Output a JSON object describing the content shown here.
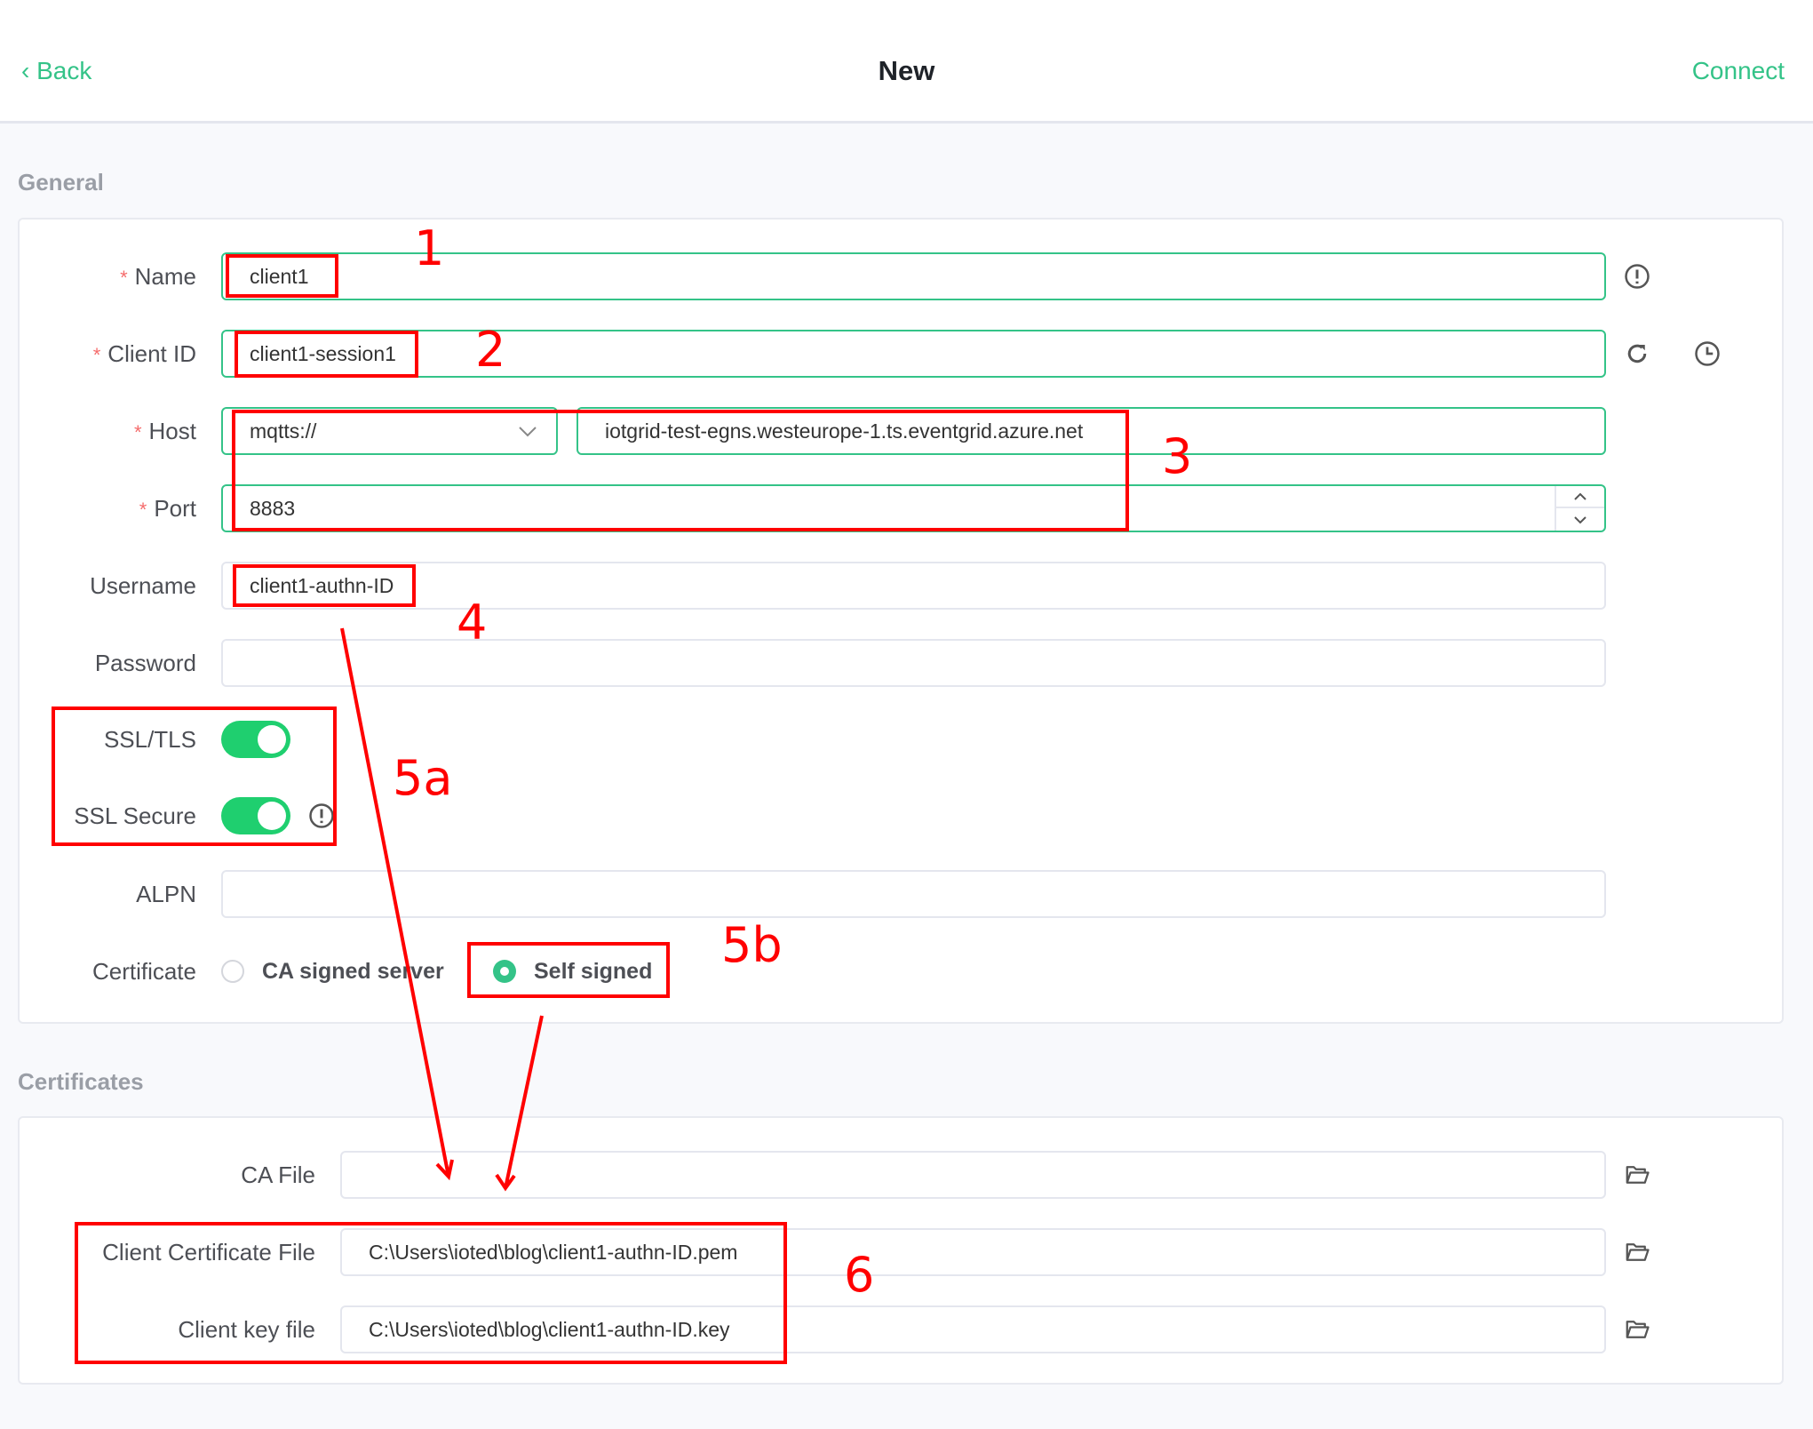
{
  "header": {
    "back_label": "Back",
    "title": "New",
    "connect_label": "Connect"
  },
  "general": {
    "section_title": "General",
    "name": {
      "label": "Name",
      "value": "client1"
    },
    "client_id": {
      "label": "Client ID",
      "value": "client1-session1"
    },
    "host": {
      "label": "Host",
      "protocol": "mqtts://",
      "value": "iotgrid-test-egns.westeurope-1.ts.eventgrid.azure.net"
    },
    "port": {
      "label": "Port",
      "value": "8883"
    },
    "username": {
      "label": "Username",
      "value": "client1-authn-ID"
    },
    "password": {
      "label": "Password",
      "value": ""
    },
    "ssl_tls": {
      "label": "SSL/TLS",
      "on": true
    },
    "ssl_secure": {
      "label": "SSL Secure",
      "on": true
    },
    "alpn": {
      "label": "ALPN",
      "value": ""
    },
    "certificate": {
      "label": "Certificate",
      "options": [
        "CA signed server",
        "Self signed"
      ],
      "selected": "Self signed"
    }
  },
  "certificates": {
    "section_title": "Certificates",
    "ca_file": {
      "label": "CA File",
      "value": ""
    },
    "client_cert": {
      "label": "Client Certificate File",
      "value": "C:\\Users\\ioted\\blog\\client1-authn-ID.pem"
    },
    "client_key": {
      "label": "Client key file",
      "value": "C:\\Users\\ioted\\blog\\client1-authn-ID.key"
    }
  },
  "annotations": {
    "color": "#ff0000",
    "labels": [
      "1",
      "2",
      "3",
      "4",
      "5a",
      "5b",
      "6"
    ]
  },
  "colors": {
    "accent": "#34c388",
    "toggle": "#1fcf6f",
    "required": "#f56c6c"
  }
}
